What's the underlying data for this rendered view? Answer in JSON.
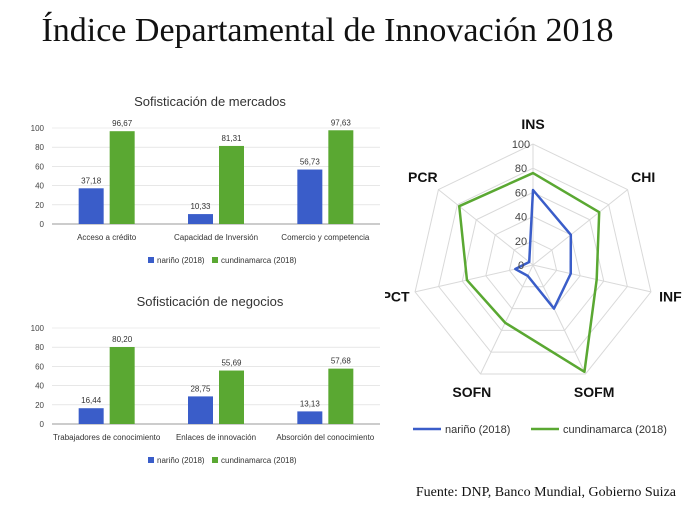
{
  "title": "Índice Departamental de Innovación 2018",
  "source": "Fuente: DNP, Banco Mundial, Gobierno Suiza",
  "colors": {
    "narino": "#3a5dc9",
    "cundinamarca": "#5aa832",
    "grid": "#d9d9d9",
    "axis": "#999999"
  },
  "chart_data": [
    {
      "type": "bar",
      "title": "Sofisticación de mercados",
      "categories": [
        "Acceso a crédito",
        "Capacidad de Inversión",
        "Comercio y competencia"
      ],
      "series": [
        {
          "name": "nariño (2018)",
          "values": [
            37.18,
            10.33,
            56.73
          ],
          "labels": [
            "37,18",
            "10,33",
            "56,73"
          ]
        },
        {
          "name": "cundinamarca (2018)",
          "values": [
            96.67,
            81.31,
            97.63
          ],
          "labels": [
            "96,67",
            "81,31",
            "97,63"
          ]
        }
      ],
      "ylim": [
        0,
        100
      ],
      "yticks": [
        "0",
        "20",
        "40",
        "60",
        "80",
        "100"
      ],
      "legend_position": "bottom"
    },
    {
      "type": "bar",
      "title": "Sofisticación de negocios",
      "categories": [
        "Trabajadores de conocimiento",
        "Enlaces de innovación",
        "Absorción del conocimiento"
      ],
      "series": [
        {
          "name": "nariño (2018)",
          "values": [
            16.44,
            28.75,
            13.13
          ],
          "labels": [
            "16,44",
            "28,75",
            "13,13"
          ]
        },
        {
          "name": "cundinamarca (2018)",
          "values": [
            80.2,
            55.69,
            57.68
          ],
          "labels": [
            "80,20",
            "55,69",
            "57,68"
          ]
        }
      ],
      "ylim": [
        0,
        100
      ],
      "yticks": [
        "0",
        "20",
        "40",
        "60",
        "80",
        "100"
      ],
      "legend_position": "bottom"
    },
    {
      "type": "radar",
      "axes": [
        "INS",
        "CHI",
        "INF",
        "SOFM",
        "SOFN",
        "PCT",
        "PCR"
      ],
      "rlim": [
        0,
        100
      ],
      "rticks": [
        "0",
        "20",
        "40",
        "60",
        "80",
        "100"
      ],
      "series": [
        {
          "name": "nariño (2018)",
          "values": [
            62,
            40,
            32,
            40,
            10,
            15,
            4
          ]
        },
        {
          "name": "cundinamarca (2018)",
          "values": [
            76,
            70,
            54,
            98,
            53,
            56,
            78
          ]
        }
      ],
      "legend_position": "bottom"
    }
  ]
}
